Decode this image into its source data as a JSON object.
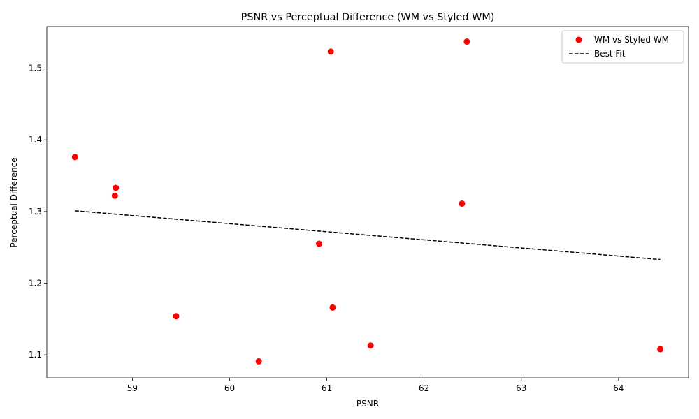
{
  "chart_data": {
    "type": "scatter",
    "title": "PSNR vs Perceptual Difference (WM vs Styled WM)",
    "xlabel": "PSNR",
    "ylabel": "Perceptual Difference",
    "xlim": [
      58.12,
      64.72
    ],
    "ylim": [
      1.068,
      1.558
    ],
    "xticks": [
      59,
      60,
      61,
      62,
      63,
      64
    ],
    "yticks": [
      1.1,
      1.2,
      1.3,
      1.4,
      1.5
    ],
    "grid": false,
    "legend_position": "top-right",
    "series": [
      {
        "name": "WM vs Styled WM",
        "kind": "scatter",
        "color": "#ff0000",
        "points": [
          {
            "x": 58.41,
            "y": 1.376
          },
          {
            "x": 58.83,
            "y": 1.333
          },
          {
            "x": 58.82,
            "y": 1.322
          },
          {
            "x": 59.45,
            "y": 1.154
          },
          {
            "x": 60.3,
            "y": 1.091
          },
          {
            "x": 60.92,
            "y": 1.255
          },
          {
            "x": 61.04,
            "y": 1.523
          },
          {
            "x": 61.06,
            "y": 1.166
          },
          {
            "x": 61.45,
            "y": 1.113
          },
          {
            "x": 62.39,
            "y": 1.311
          },
          {
            "x": 62.44,
            "y": 1.537
          },
          {
            "x": 64.43,
            "y": 1.108
          }
        ]
      },
      {
        "name": "Best Fit",
        "kind": "line",
        "color": "#000000",
        "points": [
          {
            "x": 58.41,
            "y": 1.301
          },
          {
            "x": 64.43,
            "y": 1.233
          }
        ]
      }
    ]
  }
}
